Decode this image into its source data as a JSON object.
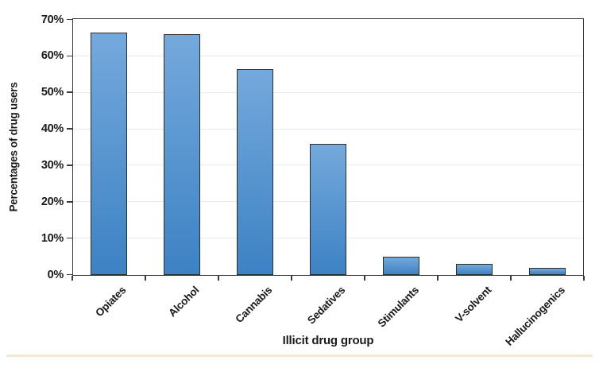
{
  "figure": {
    "background": "#ffffff",
    "bottom_rule_color": "#f6e9cd"
  },
  "chart_data": {
    "type": "bar",
    "categories": [
      "Opiates",
      "Alcohol",
      "Cannabis",
      "Sedatives",
      "Stimulants",
      "V-solvent",
      "Hallucinogenics"
    ],
    "values": [
      66.5,
      66,
      56.5,
      36,
      5,
      3,
      2
    ],
    "title": "",
    "xlabel": "Illicit drug group",
    "ylabel": "Percentages of drug users",
    "ylim": [
      0,
      70
    ],
    "ytick_step": 10,
    "ytick_suffix": "%",
    "grid": true,
    "legend": null,
    "colors": {
      "bar_top": "#74a9dc",
      "bar_bottom": "#3d82c4",
      "bar_border": "#2d2d2d",
      "axis": "#3a3a3a",
      "gridline": "#e7ebf5",
      "text": "#1a1a1a"
    }
  }
}
